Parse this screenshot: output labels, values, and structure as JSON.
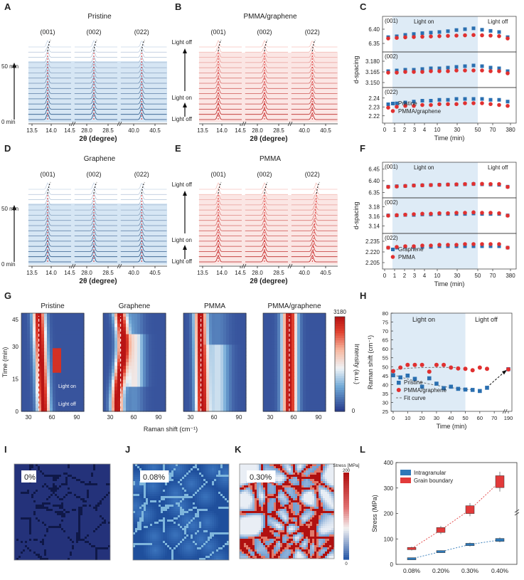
{
  "panel_letters": [
    "A",
    "B",
    "C",
    "D",
    "E",
    "F",
    "G",
    "H",
    "I",
    "J",
    "K",
    "L"
  ],
  "xrd": {
    "x_tick_labels": [
      "13.5",
      "14.0",
      "14.5",
      "28.0",
      "28.5",
      "40.0",
      "40.5"
    ],
    "x_label": "2θ (degree)",
    "peak_labels": [
      "(001)",
      "(002)",
      "(022)"
    ],
    "time_labels": [
      "50 min",
      "0 min"
    ],
    "light_labels": [
      "Light off",
      "Light on",
      "Light off"
    ],
    "panels": [
      {
        "id": "A",
        "title": "Pristine",
        "theme": "blue",
        "annotation": "time",
        "peak_shift": [
          0,
          0,
          0
        ]
      },
      {
        "id": "B",
        "title": "PMMA/graphene",
        "theme": "red",
        "annotation": "light",
        "peak_shift": [
          0,
          0,
          0
        ]
      },
      {
        "id": "D",
        "title": "Graphene",
        "theme": "blue",
        "annotation": "time",
        "peak_shift": [
          0,
          0,
          0
        ]
      },
      {
        "id": "E",
        "title": "PMMA",
        "theme": "red",
        "annotation": "light",
        "peak_shift": [
          0,
          0,
          0.6
        ]
      }
    ]
  },
  "dspacing_C": {
    "ylabel": "d-spacing",
    "xlabel": "Time (min)",
    "x_ticks": [
      "0",
      "1",
      "2",
      "3",
      "4",
      "10",
      "30",
      "50",
      "70",
      "380"
    ],
    "light_on": "Light on",
    "light_off": "Light off",
    "legend": [
      "Pristine",
      "PMMA/graphene"
    ],
    "rows": [
      {
        "tag": "(001)",
        "ticks": [
          "6.40",
          "6.35"
        ],
        "ylim": [
          6.33,
          6.43
        ],
        "a": [
          6.372,
          6.375,
          6.38,
          6.383,
          6.386,
          6.388,
          6.39,
          6.393,
          6.397,
          6.4,
          6.403,
          6.398,
          6.394,
          6.39,
          6.372
        ],
        "b": [
          6.37,
          6.372,
          6.374,
          6.375,
          6.376,
          6.377,
          6.378,
          6.379,
          6.38,
          6.381,
          6.382,
          6.381,
          6.38,
          6.378,
          6.37
        ]
      },
      {
        "tag": "(002)",
        "ticks": [
          "3.180",
          "3.165",
          "3.150"
        ],
        "ylim": [
          3.147,
          3.187
        ],
        "a": [
          3.166,
          3.167,
          3.168,
          3.168,
          3.169,
          3.17,
          3.17,
          3.171,
          3.172,
          3.173,
          3.174,
          3.173,
          3.171,
          3.17,
          3.166
        ],
        "b": [
          3.165,
          3.165,
          3.166,
          3.166,
          3.166,
          3.167,
          3.167,
          3.167,
          3.168,
          3.168,
          3.168,
          3.168,
          3.167,
          3.167,
          3.164
        ]
      },
      {
        "tag": "(022)",
        "ticks": [
          "2.24",
          "2.23",
          "2.22"
        ],
        "ylim": [
          2.215,
          2.247
        ],
        "a": [
          2.233,
          2.234,
          2.235,
          2.236,
          2.237,
          2.237,
          2.238,
          2.238,
          2.239,
          2.239,
          2.239,
          2.239,
          2.238,
          2.238,
          2.236
        ],
        "b": [
          2.23,
          2.231,
          2.232,
          2.232,
          2.233,
          2.233,
          2.234,
          2.234,
          2.234,
          2.235,
          2.235,
          2.235,
          2.234,
          2.233,
          2.232
        ]
      }
    ]
  },
  "dspacing_F": {
    "ylabel": "d-spacing",
    "xlabel": "Time (min)",
    "x_ticks": [
      "0",
      "1",
      "2",
      "3",
      "4",
      "10",
      "30",
      "50",
      "70",
      "380"
    ],
    "light_on": "Light on",
    "light_off": "Light off",
    "legend": [
      "Graphene",
      "PMMA"
    ],
    "rows": [
      {
        "tag": "(001)",
        "ticks": [
          "6.45",
          "6.40",
          "6.35"
        ],
        "ylim": [
          6.34,
          6.46
        ],
        "a": [
          6.375,
          6.377,
          6.378,
          6.38,
          6.381,
          6.382,
          6.383,
          6.384,
          6.384,
          6.385,
          6.386,
          6.385,
          6.384,
          6.383,
          6.375
        ],
        "b": [
          6.377,
          6.379,
          6.381,
          6.383,
          6.384,
          6.385,
          6.386,
          6.387,
          6.388,
          6.389,
          6.39,
          6.39,
          6.389,
          6.389,
          6.377
        ]
      },
      {
        "tag": "(002)",
        "ticks": [
          "3.18",
          "3.16",
          "3.14"
        ],
        "ylim": [
          3.13,
          3.19
        ],
        "a": [
          3.162,
          3.162,
          3.163,
          3.163,
          3.164,
          3.164,
          3.165,
          3.165,
          3.165,
          3.165,
          3.166,
          3.165,
          3.165,
          3.165,
          3.162
        ],
        "b": [
          3.163,
          3.164,
          3.165,
          3.166,
          3.167,
          3.167,
          3.168,
          3.168,
          3.169,
          3.169,
          3.17,
          3.169,
          3.169,
          3.168,
          3.163
        ]
      },
      {
        "tag": "(022)",
        "ticks": [
          "2.235",
          "2.220",
          "2.205"
        ],
        "ylim": [
          2.2,
          2.24
        ],
        "a": [
          2.226,
          2.226,
          2.227,
          2.227,
          2.227,
          2.227,
          2.228,
          2.228,
          2.228,
          2.228,
          2.228,
          2.228,
          2.228,
          2.228,
          2.226
        ],
        "b": [
          2.227,
          2.228,
          2.229,
          2.229,
          2.23,
          2.23,
          2.231,
          2.231,
          2.231,
          2.232,
          2.232,
          2.232,
          2.232,
          2.232,
          2.227
        ]
      }
    ]
  },
  "heatmaps": {
    "titles": [
      "Pristine",
      "Graphene",
      "PMMA",
      "PMMA/graphene"
    ],
    "ylabel": "Time (min)",
    "xlabel": "Raman shift (cm⁻¹)",
    "y_ticks": [
      "0",
      "15",
      "30",
      "45"
    ],
    "x_ticks": [
      "30",
      "60",
      "90"
    ],
    "colorbar_label": "Intensity (a.u.)",
    "colorbar_max": "3180",
    "colorbar_min": "0",
    "light_on": "Light on",
    "light_off": "Light off"
  },
  "chart_data": {
    "type": "scatter",
    "panel": "H",
    "ylabel": "Raman shift (cm⁻¹)",
    "xlabel": "Time (min)",
    "ylim": [
      25,
      80
    ],
    "y_ticks": [
      25,
      30,
      35,
      40,
      45,
      50,
      55,
      60,
      65,
      70,
      75,
      80
    ],
    "x_tick_labels": [
      "0",
      "10",
      "20",
      "30",
      "40",
      "50",
      "60",
      "70",
      "190"
    ],
    "light_on": "Light on",
    "light_off": "Light off",
    "series": [
      {
        "name": "Pristine",
        "marker": "square",
        "color": "#2a6fb0",
        "x": [
          0,
          5,
          10,
          15,
          20,
          25,
          30,
          35,
          40,
          45,
          50,
          55,
          60,
          65,
          190
        ],
        "y": [
          45.2,
          44.0,
          45.0,
          43.2,
          38.8,
          43.5,
          40.5,
          38.0,
          38.8,
          37.6,
          37.2,
          37.0,
          36.4,
          38.2,
          48.6
        ]
      },
      {
        "name": "PMMA/graphene",
        "marker": "circle",
        "color": "#e03030",
        "x": [
          0,
          5,
          10,
          15,
          20,
          25,
          30,
          35,
          40,
          45,
          50,
          55,
          60,
          65,
          190
        ],
        "y": [
          47.5,
          49.5,
          51.0,
          51.0,
          51.0,
          47.2,
          51.0,
          51.0,
          49.5,
          49.0,
          48.8,
          48.0,
          49.5,
          48.8,
          48.5
        ]
      },
      {
        "name": "Fit curve",
        "marker": "dashed-line",
        "color": "#777777"
      }
    ]
  },
  "simulations": {
    "labels": [
      "0%",
      "0.08%",
      "0.30%"
    ],
    "colorbar_title": "Stress [MPa]",
    "colorbar_max": "200",
    "colorbar_min": "0"
  },
  "stress_chart": {
    "type": "box",
    "ylabel": "Stress (MPa)",
    "categories": [
      "0.08%",
      "0.20%",
      "0.30%",
      "0.40%"
    ],
    "ylim": [
      0,
      400
    ],
    "y_ticks": [
      "0",
      "100",
      "200",
      "300",
      "400"
    ],
    "series": [
      {
        "name": "Intragranular",
        "color": "#2e78b8",
        "values": [
          22,
          50,
          78,
          96
        ]
      },
      {
        "name": "Grain boundary",
        "color": "#e23a3a",
        "values": [
          62,
          135,
          215,
          325
        ]
      }
    ]
  }
}
